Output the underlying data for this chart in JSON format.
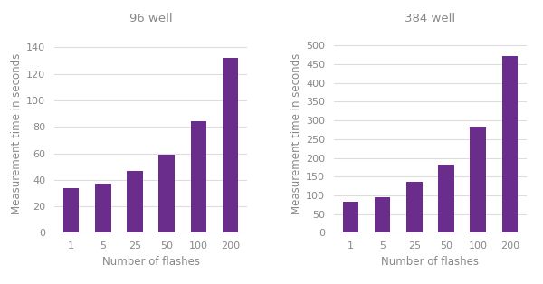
{
  "categories": [
    "1",
    "5",
    "25",
    "50",
    "100",
    "200"
  ],
  "values_96": [
    34,
    37,
    47,
    59,
    84,
    132
  ],
  "values_384": [
    83,
    95,
    135,
    182,
    283,
    472
  ],
  "title_96": "96 well",
  "title_384": "384 well",
  "xlabel": "Number of flashes",
  "ylabel": "Measurement time in seconds",
  "bar_color": "#6b2d8b",
  "ylim_96": [
    0,
    150
  ],
  "ylim_384": [
    0,
    530
  ],
  "yticks_96": [
    0,
    20,
    40,
    60,
    80,
    100,
    120,
    140
  ],
  "yticks_384": [
    0,
    50,
    100,
    150,
    200,
    250,
    300,
    350,
    400,
    450,
    500
  ],
  "background_color": "#ffffff",
  "grid_color": "#dddddd",
  "title_fontsize": 9.5,
  "label_fontsize": 8.5,
  "tick_fontsize": 8,
  "text_color": "#888888"
}
